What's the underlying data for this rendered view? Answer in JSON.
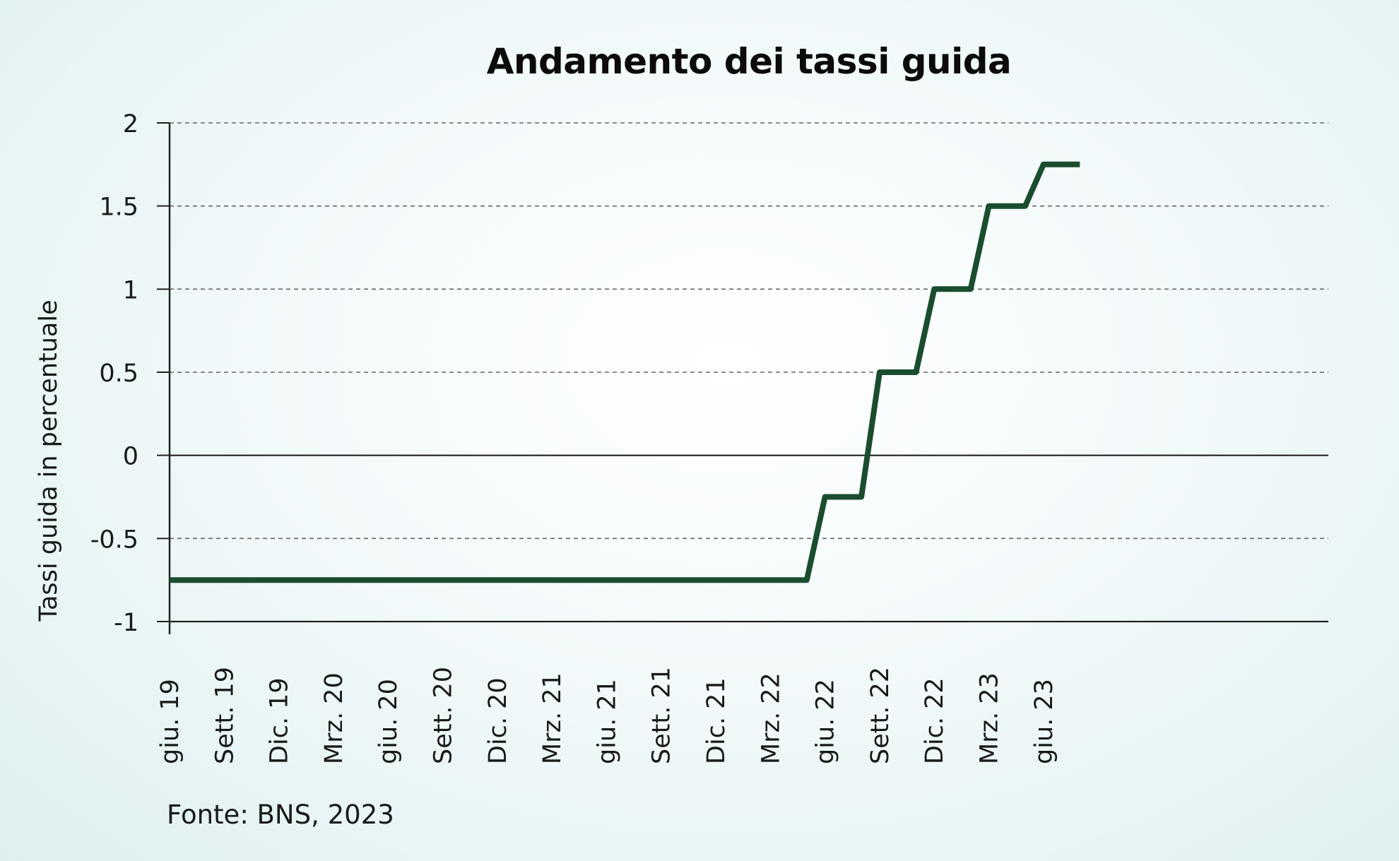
{
  "chart_data": {
    "type": "line",
    "title": "Andamento dei tassi guida",
    "xlabel": "",
    "ylabel": "Tassi guida in percentuale",
    "ylim": [
      -1,
      2
    ],
    "yticks": [
      "2",
      "1.5",
      "1",
      "0.5",
      "0",
      "-0.5",
      "-1"
    ],
    "ytick_values": [
      2,
      1.5,
      1,
      0.5,
      0,
      -0.5,
      -1
    ],
    "xticks": [
      "giu. 19",
      "Sett. 19",
      "Dic. 19",
      "Mrz. 20",
      "giu. 20",
      "Sett. 20",
      "Dic. 20",
      "Mrz. 21",
      "giu. 21",
      "Sett. 21",
      "Dic. 21",
      "Mrz. 22",
      "giu. 22",
      "Sett. 22",
      "Dic. 22",
      "Mrz. 23",
      "giu. 23"
    ],
    "grid": "horizontal dashed",
    "line_color": "#1a4d2e",
    "series": [
      {
        "points": [
          {
            "x": "2019-06",
            "y": -0.75
          },
          {
            "x": "2022-05",
            "y": -0.75
          },
          {
            "x": "2022-06",
            "y": -0.25
          },
          {
            "x": "2022-08",
            "y": -0.25
          },
          {
            "x": "2022-09",
            "y": 0.5
          },
          {
            "x": "2022-11",
            "y": 0.5
          },
          {
            "x": "2022-12",
            "y": 1.0
          },
          {
            "x": "2023-02",
            "y": 1.0
          },
          {
            "x": "2023-03",
            "y": 1.5
          },
          {
            "x": "2023-05",
            "y": 1.5
          },
          {
            "x": "2023-06",
            "y": 1.75
          },
          {
            "x": "2023-08",
            "y": 1.75
          }
        ]
      }
    ]
  },
  "source": "Fonte: BNS, 2023"
}
